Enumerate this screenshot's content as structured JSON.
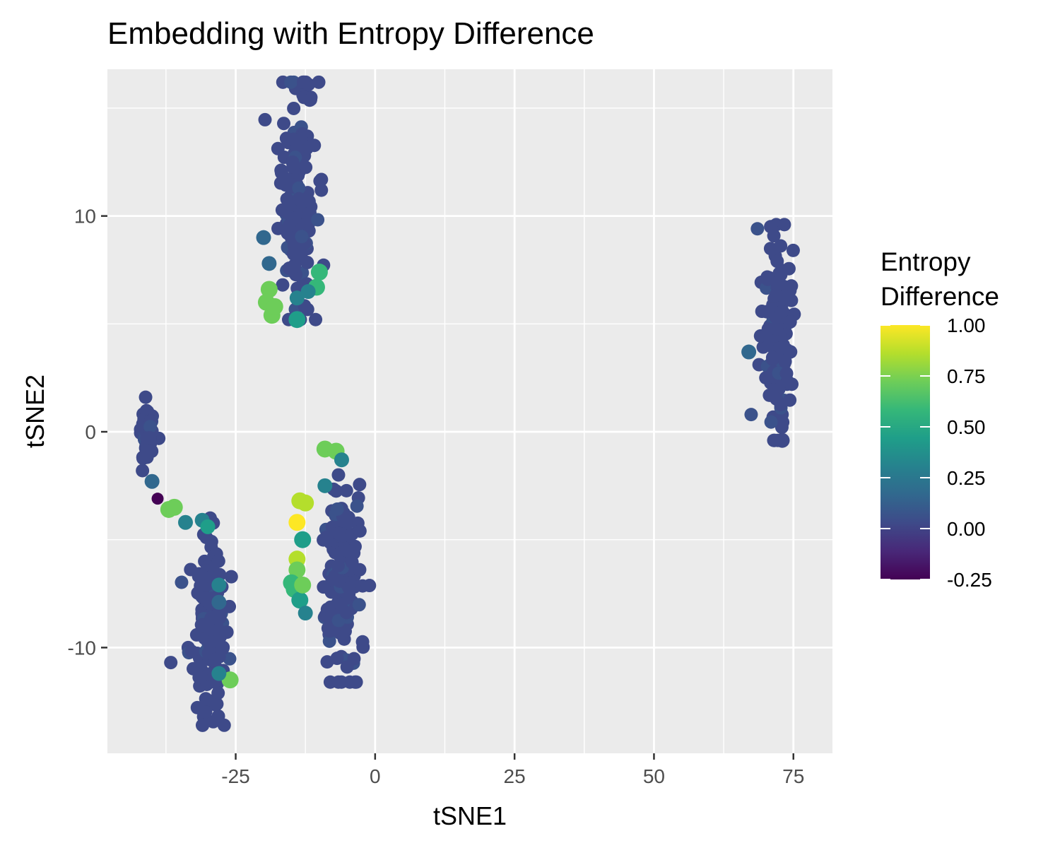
{
  "chart_data": {
    "type": "scatter",
    "title": "Embedding with Entropy Difference",
    "xlabel": "tSNE1",
    "ylabel": "tSNE2",
    "xlim": [
      -48,
      82
    ],
    "ylim": [
      -14.9,
      16.8
    ],
    "x_ticks": [
      -25,
      0,
      25,
      50,
      75
    ],
    "x_tick_labels": [
      "-25",
      "0",
      "25",
      "50",
      "75"
    ],
    "y_ticks": [
      -10,
      0,
      10
    ],
    "y_tick_labels": [
      "-10",
      "0",
      "10"
    ],
    "grid": true,
    "legend": {
      "title": "Entropy Difference",
      "title_lines": [
        "Entropy",
        "Difference"
      ],
      "position": "right",
      "min": -0.25,
      "max": 1.0,
      "breaks": [
        1.0,
        0.75,
        0.5,
        0.25,
        0.0,
        -0.25
      ],
      "labels": [
        "1.00",
        "0.75",
        "0.50",
        "0.25",
        "0.00",
        "-0.25"
      ],
      "palette": [
        "#440154",
        "#482878",
        "#3E4A89",
        "#31688E",
        "#26828E",
        "#1F9E89",
        "#35B779",
        "#6DCD59",
        "#B4DE2C",
        "#FDE725"
      ]
    },
    "clusters": [
      {
        "cx": -14,
        "cy": 11,
        "sx": 2.2,
        "sy": 3.0,
        "n": 150,
        "color": "#3E4A89",
        "shape": "blob",
        "y_range": [
          5.2,
          16.2
        ]
      },
      {
        "cx": 72,
        "cy": 4.5,
        "sx": 1.8,
        "sy": 2.4,
        "n": 140,
        "color": "#3E4A89",
        "shape": "blob",
        "y_range": [
          -0.4,
          9.6
        ]
      },
      {
        "cx": -41,
        "cy": 0,
        "sx": 0.9,
        "sy": 0.8,
        "n": 40,
        "color": "#3E4A89",
        "shape": "blob",
        "y_range": [
          -1.8,
          1.6
        ]
      },
      {
        "cx": -30,
        "cy": -9,
        "sx": 2.2,
        "sy": 2.0,
        "n": 160,
        "color": "#3E4A89",
        "shape": "blob",
        "y_range": [
          -13.6,
          -4.0
        ]
      },
      {
        "cx": -6,
        "cy": -6.5,
        "sx": 2.4,
        "sy": 2.2,
        "n": 150,
        "color": "#3E4A89",
        "shape": "blob",
        "y_range": [
          -11.6,
          -2.0
        ]
      }
    ],
    "highlight_points": [
      {
        "x": -39,
        "y": -3.1,
        "value": -0.25
      },
      {
        "x": -40,
        "y": -2.3,
        "value": 0.1
      },
      {
        "x": -19,
        "y": 6.6,
        "value": 0.72
      },
      {
        "x": -19.5,
        "y": 6.0,
        "value": 0.75
      },
      {
        "x": -18.5,
        "y": 5.4,
        "value": 0.78
      },
      {
        "x": -18,
        "y": 5.8,
        "value": 0.68
      },
      {
        "x": -14,
        "y": 5.2,
        "value": 0.45
      },
      {
        "x": -10.5,
        "y": 6.7,
        "value": 0.6
      },
      {
        "x": -10,
        "y": 7.4,
        "value": 0.55
      },
      {
        "x": -19,
        "y": 7.8,
        "value": 0.2
      },
      {
        "x": -20,
        "y": 9.0,
        "value": 0.1
      },
      {
        "x": -12,
        "y": 6.5,
        "value": 0.25
      },
      {
        "x": -14,
        "y": 6.2,
        "value": 0.3
      },
      {
        "x": -37,
        "y": -3.6,
        "value": 0.7
      },
      {
        "x": -36,
        "y": -3.5,
        "value": 0.75
      },
      {
        "x": -34,
        "y": -4.2,
        "value": 0.3
      },
      {
        "x": -31,
        "y": -4.1,
        "value": 0.35
      },
      {
        "x": -30,
        "y": -4.4,
        "value": 0.4
      },
      {
        "x": -28,
        "y": -7.1,
        "value": 0.25
      },
      {
        "x": -28,
        "y": -7.9,
        "value": 0.22
      },
      {
        "x": -26,
        "y": -11.5,
        "value": 0.7
      },
      {
        "x": -28,
        "y": -11.2,
        "value": 0.35
      },
      {
        "x": -9,
        "y": -0.8,
        "value": 0.7
      },
      {
        "x": -7,
        "y": -0.9,
        "value": 0.68
      },
      {
        "x": -6,
        "y": -1.3,
        "value": 0.3
      },
      {
        "x": -9,
        "y": -2.5,
        "value": 0.25
      },
      {
        "x": -13.5,
        "y": -3.2,
        "value": 0.88
      },
      {
        "x": -12.5,
        "y": -3.3,
        "value": 0.9
      },
      {
        "x": -14,
        "y": -4.2,
        "value": 1.0
      },
      {
        "x": -13,
        "y": -5.0,
        "value": 0.5
      },
      {
        "x": -14,
        "y": -5.9,
        "value": 0.8
      },
      {
        "x": -14,
        "y": -6.4,
        "value": 0.78
      },
      {
        "x": -15,
        "y": -7.0,
        "value": 0.6
      },
      {
        "x": -14.5,
        "y": -7.3,
        "value": 0.55
      },
      {
        "x": -13.5,
        "y": -7.8,
        "value": 0.5
      },
      {
        "x": -12.5,
        "y": -8.4,
        "value": 0.35
      },
      {
        "x": -13,
        "y": -7.1,
        "value": 0.7
      },
      {
        "x": 67,
        "y": 3.7,
        "value": 0.2
      },
      {
        "x": 73,
        "y": -0.4,
        "value": 0.05
      }
    ]
  }
}
